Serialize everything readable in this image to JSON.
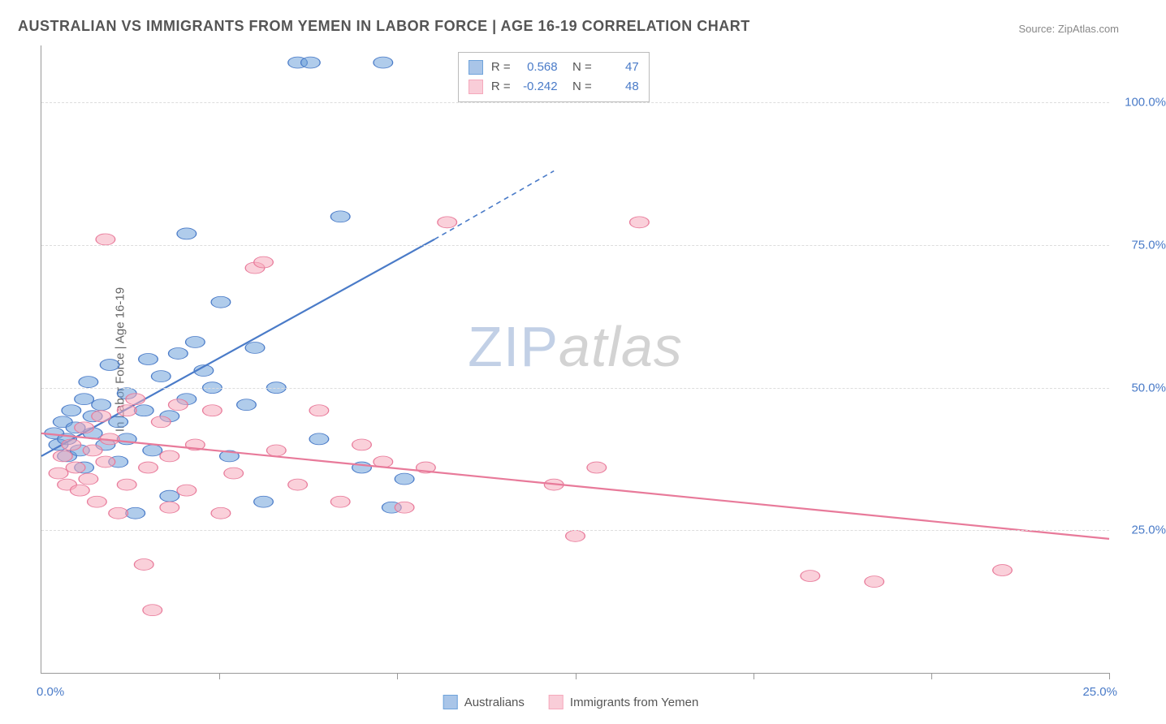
{
  "title": "AUSTRALIAN VS IMMIGRANTS FROM YEMEN IN LABOR FORCE | AGE 16-19 CORRELATION CHART",
  "source": "Source: ZipAtlas.com",
  "watermark": {
    "part1": "ZIP",
    "part2": "atlas"
  },
  "chart": {
    "type": "scatter",
    "ylabel": "In Labor Force | Age 16-19",
    "xlim": [
      0,
      25
    ],
    "ylim": [
      0,
      110
    ],
    "ytick_values": [
      25,
      50,
      75,
      100
    ],
    "ytick_labels": [
      "25.0%",
      "50.0%",
      "75.0%",
      "100.0%"
    ],
    "xtick_values": [
      0,
      4.17,
      8.33,
      12.5,
      16.67,
      20.83,
      25
    ],
    "x_axis_label_min": "0.0%",
    "x_axis_label_max": "25.0%",
    "background_color": "#ffffff",
    "grid_color": "#dddddd",
    "axis_color": "#999999",
    "marker_radius": 9,
    "marker_opacity": 0.55,
    "series": [
      {
        "name": "Australians",
        "color": "#6fa3db",
        "stroke": "#4a7bc8",
        "r_value": "0.568",
        "n_value": "47",
        "trend": {
          "x1": 0,
          "y1": 38,
          "x2": 9.2,
          "y2": 76,
          "dash_to_x": 12.0,
          "dash_to_y": 88
        },
        "points": [
          [
            0.3,
            42
          ],
          [
            0.4,
            40
          ],
          [
            0.5,
            44
          ],
          [
            0.6,
            41
          ],
          [
            0.6,
            38
          ],
          [
            0.7,
            46
          ],
          [
            0.8,
            43
          ],
          [
            0.9,
            39
          ],
          [
            1.0,
            48
          ],
          [
            1.0,
            36
          ],
          [
            1.1,
            51
          ],
          [
            1.2,
            45
          ],
          [
            1.2,
            42
          ],
          [
            1.4,
            47
          ],
          [
            1.5,
            40
          ],
          [
            1.6,
            54
          ],
          [
            1.8,
            37
          ],
          [
            1.8,
            44
          ],
          [
            2.0,
            49
          ],
          [
            2.0,
            41
          ],
          [
            2.2,
            28
          ],
          [
            2.4,
            46
          ],
          [
            2.5,
            55
          ],
          [
            2.6,
            39
          ],
          [
            2.8,
            52
          ],
          [
            3.0,
            31
          ],
          [
            3.0,
            45
          ],
          [
            3.2,
            56
          ],
          [
            3.4,
            77
          ],
          [
            3.4,
            48
          ],
          [
            3.6,
            58
          ],
          [
            3.8,
            53
          ],
          [
            4.0,
            50
          ],
          [
            4.2,
            65
          ],
          [
            4.4,
            38
          ],
          [
            4.8,
            47
          ],
          [
            5.0,
            57
          ],
          [
            5.2,
            30
          ],
          [
            5.5,
            50
          ],
          [
            6.0,
            107
          ],
          [
            6.3,
            107
          ],
          [
            6.5,
            41
          ],
          [
            7.0,
            80
          ],
          [
            7.5,
            36
          ],
          [
            8.0,
            107
          ],
          [
            8.2,
            29
          ],
          [
            8.5,
            34
          ]
        ]
      },
      {
        "name": "Immigrants from Yemen",
        "color": "#f5a9bc",
        "stroke": "#e87a9a",
        "r_value": "-0.242",
        "n_value": "48",
        "trend": {
          "x1": 0,
          "y1": 42,
          "x2": 25,
          "y2": 23.5
        },
        "points": [
          [
            0.4,
            35
          ],
          [
            0.5,
            38
          ],
          [
            0.6,
            33
          ],
          [
            0.7,
            40
          ],
          [
            0.8,
            36
          ],
          [
            0.9,
            32
          ],
          [
            1.0,
            43
          ],
          [
            1.1,
            34
          ],
          [
            1.2,
            39
          ],
          [
            1.3,
            30
          ],
          [
            1.4,
            45
          ],
          [
            1.5,
            37
          ],
          [
            1.5,
            76
          ],
          [
            1.6,
            41
          ],
          [
            1.8,
            28
          ],
          [
            2.0,
            46
          ],
          [
            2.0,
            33
          ],
          [
            2.2,
            48
          ],
          [
            2.4,
            19
          ],
          [
            2.5,
            36
          ],
          [
            2.6,
            11
          ],
          [
            2.8,
            44
          ],
          [
            3.0,
            29
          ],
          [
            3.0,
            38
          ],
          [
            3.2,
            47
          ],
          [
            3.4,
            32
          ],
          [
            3.6,
            40
          ],
          [
            4.0,
            46
          ],
          [
            4.2,
            28
          ],
          [
            4.5,
            35
          ],
          [
            5.0,
            71
          ],
          [
            5.2,
            72
          ],
          [
            5.5,
            39
          ],
          [
            6.0,
            33
          ],
          [
            6.5,
            46
          ],
          [
            7.0,
            30
          ],
          [
            7.5,
            40
          ],
          [
            8.0,
            37
          ],
          [
            8.5,
            29
          ],
          [
            9.0,
            36
          ],
          [
            9.5,
            79
          ],
          [
            12.0,
            33
          ],
          [
            12.5,
            24
          ],
          [
            13.0,
            36
          ],
          [
            14.0,
            79
          ],
          [
            18.0,
            17
          ],
          [
            19.5,
            16
          ],
          [
            22.5,
            18
          ]
        ]
      }
    ],
    "bottom_legend": [
      {
        "label": "Australians",
        "fill": "#a9c5e8",
        "stroke": "#6fa3db"
      },
      {
        "label": "Immigrants from Yemen",
        "fill": "#f9cdd8",
        "stroke": "#f5a9bc"
      }
    ],
    "stats_box": {
      "left_pct": 39,
      "top_pct": 1
    }
  }
}
